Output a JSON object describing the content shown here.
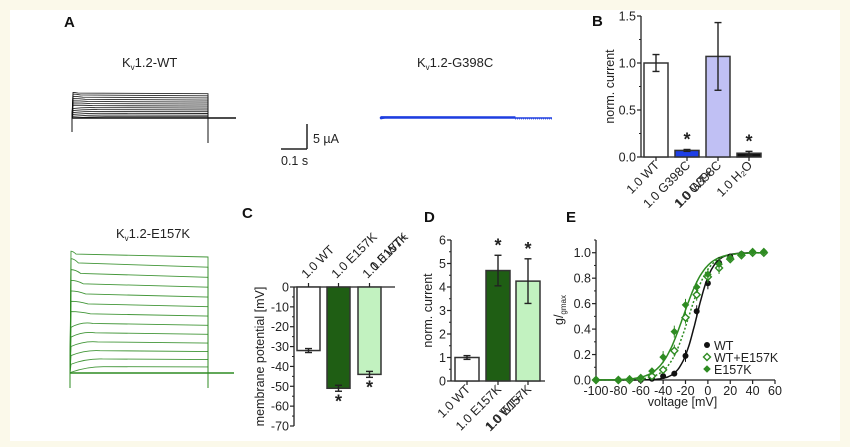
{
  "figure": {
    "panel_labels": {
      "A": "A",
      "B": "B",
      "C": "C",
      "D": "D",
      "E": "E"
    },
    "traces": [
      {
        "id": "wt",
        "title_main": "K",
        "title_sub": "v",
        "title_rest": "1.2-WT",
        "color": "#111111",
        "n_sweeps": 13,
        "amplitude": 0.9
      },
      {
        "id": "g398c",
        "title_main": "K",
        "title_sub": "v",
        "title_rest": "1.2-G398C",
        "color": "#1f3fe0",
        "n_sweeps": 3,
        "amplitude": 0.05
      },
      {
        "id": "e157k",
        "title_main": "K",
        "title_sub": "v",
        "title_rest": "1.2-E157K",
        "color": "#2e8b22",
        "n_sweeps": 13,
        "amplitude": 1.0
      }
    ],
    "scale_bar": {
      "vertical": "5 µA",
      "horizontal": "0.1 s"
    }
  },
  "chart_data": [
    {
      "panel": "B",
      "type": "bar",
      "ylabel": "norm. current",
      "ylim": [
        0,
        1.5
      ],
      "yticks": [
        "0.0",
        "0.5",
        "1.0",
        "1.5"
      ],
      "ytick_values": [
        0,
        0.5,
        1.0,
        1.5
      ],
      "categories": [
        "1.0 WT",
        "1.0 G398C",
        "1.0 WT+ 1.0 G398C",
        "1.0 H₂O"
      ],
      "category_lines": [
        [
          "1.0 WT"
        ],
        [
          "1.0 G398C"
        ],
        [
          "1.0 WT+",
          "1.0 G398C"
        ],
        [
          "1.0 H₂O"
        ]
      ],
      "values": [
        1.0,
        0.07,
        1.07,
        0.04
      ],
      "errors": [
        0.09,
        0.01,
        0.36,
        0.02
      ],
      "significance": [
        "",
        "*",
        "",
        "*"
      ],
      "colors": [
        "#ffffff",
        "#1e3fe6",
        "#c0c0f4",
        "#111111"
      ]
    },
    {
      "panel": "C",
      "type": "bar",
      "ylabel": "membrane potential [mV]",
      "ylim": [
        -70,
        0
      ],
      "yticks": [
        "0",
        "-10",
        "-20",
        "-30",
        "-40",
        "-50",
        "-60",
        "-70"
      ],
      "ytick_values": [
        0,
        -10,
        -20,
        -30,
        -40,
        -50,
        -60,
        -70
      ],
      "categories": [
        "1.0 WT",
        "1.0 E157K",
        "1.0 WT+ 1.0 E157K"
      ],
      "category_lines": [
        [
          "1.0 WT"
        ],
        [
          "1.0 E157K"
        ],
        [
          "1.0 WT+",
          "1.0 E157K"
        ]
      ],
      "values": [
        -32,
        -51,
        -44
      ],
      "errors": [
        1,
        1.5,
        1.5
      ],
      "significance": [
        "",
        "*",
        "*"
      ],
      "colors": [
        "#ffffff",
        "#1f5e14",
        "#c2f2c0"
      ]
    },
    {
      "panel": "D",
      "type": "bar",
      "ylabel": "norm. current",
      "ylim": [
        0,
        6
      ],
      "yticks": [
        "0",
        "1",
        "2",
        "3",
        "4",
        "5",
        "6"
      ],
      "ytick_values": [
        0,
        1,
        2,
        3,
        4,
        5,
        6
      ],
      "categories": [
        "1.0 WT",
        "1.0 E157K",
        "1.0 WT+ 1.0 E157K"
      ],
      "category_lines": [
        [
          "1.0 WT"
        ],
        [
          "1.0 E157K"
        ],
        [
          "1.0 WT+",
          "1.0 E157K"
        ]
      ],
      "values": [
        1.0,
        4.7,
        4.25
      ],
      "errors": [
        0.08,
        0.65,
        0.95
      ],
      "significance": [
        "",
        "*",
        "*"
      ],
      "colors": [
        "#ffffff",
        "#1f5e14",
        "#c2f2c0"
      ]
    },
    {
      "panel": "E",
      "type": "scatter",
      "ylabel": "g/gmax",
      "xlabel": "voltage [mV]",
      "xlim": [
        -100,
        60
      ],
      "ylim": [
        0,
        1.1
      ],
      "xticks": [
        "-100",
        "-80",
        "-60",
        "-40",
        "-20",
        "0",
        "20",
        "40",
        "60"
      ],
      "xtick_values": [
        -100,
        -80,
        -60,
        -40,
        -20,
        0,
        20,
        40,
        60
      ],
      "yticks": [
        "0.0",
        "0.2",
        "0.4",
        "0.6",
        "0.8",
        "1.0"
      ],
      "ytick_values": [
        0,
        0.2,
        0.4,
        0.6,
        0.8,
        1.0
      ],
      "legend_position": "bottom-right",
      "series": [
        {
          "name": "WT",
          "color": "#111111",
          "marker": "filled-circle",
          "fit": "solid",
          "v_half": -10,
          "slope": 7,
          "x": [
            -100,
            -80,
            -70,
            -60,
            -50,
            -40,
            -30,
            -20,
            -10,
            0,
            10,
            20,
            30,
            40,
            50
          ],
          "y": [
            0,
            0,
            0,
            0,
            0.01,
            0.03,
            0.05,
            0.19,
            0.54,
            0.76,
            0.92,
            0.97,
            0.99,
            1.0,
            1.0
          ]
        },
        {
          "name": "WT+E157K",
          "color": "#2e8b22",
          "marker": "open-diamond",
          "fit": "dotted",
          "v_half": -17,
          "slope": 9,
          "x": [
            -100,
            -80,
            -70,
            -60,
            -50,
            -40,
            -30,
            -20,
            -10,
            0,
            10,
            20,
            30,
            40,
            50
          ],
          "y": [
            0,
            0,
            0,
            0.01,
            0.03,
            0.08,
            0.23,
            0.49,
            0.67,
            0.81,
            0.88,
            0.95,
            0.98,
            1.0,
            1.0
          ]
        },
        {
          "name": "E157K",
          "color": "#2e8b22",
          "marker": "filled-diamond",
          "fit": "solid",
          "v_half": -22,
          "slope": 10,
          "x": [
            -100,
            -80,
            -70,
            -60,
            -50,
            -40,
            -30,
            -20,
            -10,
            0,
            10,
            20,
            30,
            40,
            50
          ],
          "y": [
            0,
            0,
            0.01,
            0.02,
            0.07,
            0.18,
            0.38,
            0.59,
            0.73,
            0.83,
            0.91,
            0.96,
            0.99,
            1.01,
            1.01
          ]
        }
      ]
    }
  ]
}
